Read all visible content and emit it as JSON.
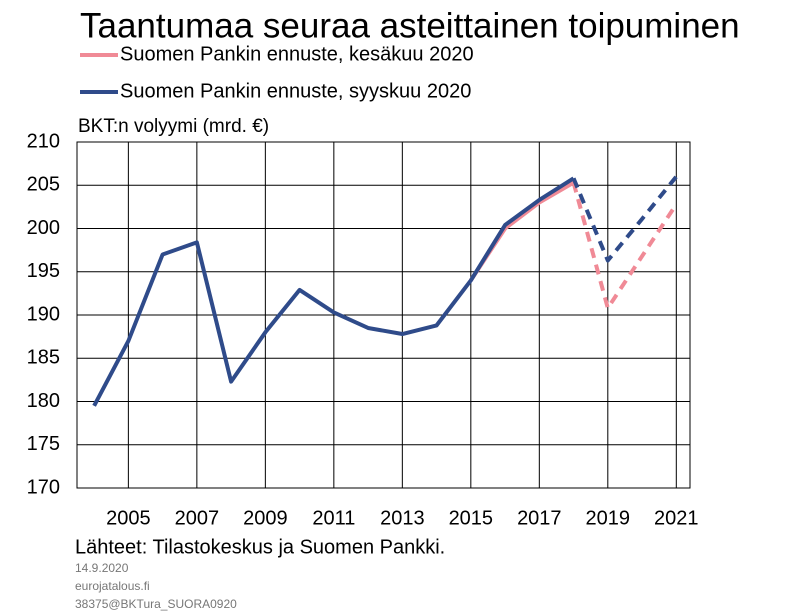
{
  "chart_data": {
    "type": "line",
    "title": "Taantumaa seuraa asteittainen toipuminen",
    "y_label": "BKT:n volyymi (mrd. €)",
    "source": "Lähteet: Tilastokeskus ja Suomen Pankki.",
    "footnotes": [
      "14.9.2020",
      "eurojatalous.fi",
      "38375@BKTura_SUORA0920"
    ],
    "x": [
      2004,
      2005,
      2006,
      2007,
      2008,
      2009,
      2010,
      2011,
      2012,
      2013,
      2014,
      2015,
      2016,
      2017,
      2018,
      2019,
      2020,
      2021
    ],
    "forecast_from": 2018,
    "series": [
      {
        "name": "Suomen Pankin ennuste, kesäkuu 2020",
        "color": "#f08a96",
        "values": [
          null,
          null,
          null,
          null,
          null,
          null,
          null,
          null,
          null,
          null,
          null,
          194,
          200,
          203,
          205.3,
          190.8,
          196.8,
          202.8
        ]
      },
      {
        "name": "Suomen Pankin ennuste, syyskuu 2020",
        "color": "#2f4b8a",
        "values": [
          179.5,
          187,
          197,
          198.4,
          182.3,
          188,
          192.9,
          190.3,
          188.5,
          187.8,
          188.8,
          194,
          200.4,
          203.3,
          205.8,
          196.3,
          201.1,
          206
        ]
      }
    ],
    "xlim": [
      2003.5,
      2021.4
    ],
    "xticks": [
      2005,
      2007,
      2009,
      2011,
      2013,
      2015,
      2017,
      2019,
      2021
    ],
    "ylim": [
      170,
      210
    ],
    "yticks": [
      170,
      175,
      180,
      185,
      190,
      195,
      200,
      205,
      210
    ],
    "grid": true
  }
}
